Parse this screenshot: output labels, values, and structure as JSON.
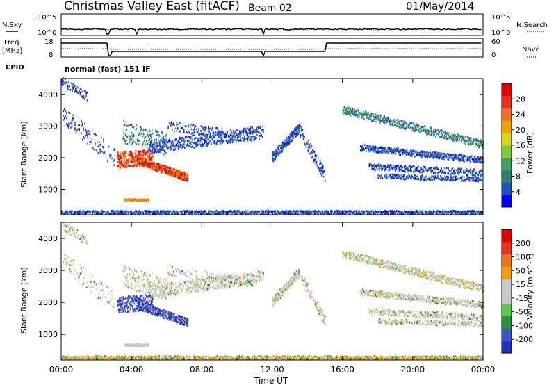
{
  "header": {
    "title": "Christmas Valley East (fitACF)",
    "beam": "Beam 02",
    "date": "01/May/2014"
  },
  "summary_panels": {
    "nsky": {
      "left_label": "N.Sky",
      "right_label": "N.Search",
      "left_ticks": [
        "10^5",
        "10^0"
      ],
      "right_ticks": [
        "10^5",
        "10^0"
      ]
    },
    "freq": {
      "left_label": "Freq.",
      "left_unit": "[MHz]",
      "right_label": "Nave",
      "left_ticks": [
        "18",
        "8"
      ],
      "right_ticks": [
        "60",
        "0"
      ]
    },
    "cpid": {
      "label": "CPID",
      "text": "normal (fast) 151 IF"
    }
  },
  "x_axis": {
    "label": "Time UT",
    "ticks": [
      "00:00",
      "04:00",
      "08:00",
      "12:00",
      "16:00",
      "20:00",
      "00:00"
    ]
  },
  "colors": {
    "power_scale": [
      "#0000ff",
      "#2050c8",
      "#2e7d6e",
      "#3aa05a",
      "#7ccc3a",
      "#d8d810",
      "#f0a000",
      "#f07020",
      "#e83020",
      "#e80000"
    ],
    "velocity_scale": [
      "#2030c0",
      "#3a56c8",
      "#2e8f3a",
      "#5ac84a",
      "#c8c8c8",
      "#c8c8c8",
      "#f0a000",
      "#f07020",
      "#e83020",
      "#e80000"
    ]
  },
  "chart_data": [
    {
      "type": "heatmap",
      "title": "Power",
      "ylabel": "Slant Range [km]",
      "xlabel": "",
      "xlim": [
        0,
        24
      ],
      "ylim": [
        200,
        4500
      ],
      "yticks": [
        "1000",
        "2000",
        "3000",
        "4000"
      ],
      "colorbar_label": "Power [dB]",
      "colorbar_ticks": [
        "28",
        "24",
        "20",
        "16",
        "12",
        "8",
        "4"
      ],
      "colorbar_range": [
        0,
        32
      ]
    },
    {
      "type": "heatmap",
      "title": "Velocity",
      "ylabel": "Slant Range [km]",
      "xlabel": "Time UT",
      "xlim": [
        0,
        24
      ],
      "ylim": [
        200,
        4500
      ],
      "yticks": [
        "1000",
        "2000",
        "3000",
        "4000"
      ],
      "colorbar_label": "Velocity [m s^-1]",
      "colorbar_ticks": [
        "200",
        "100",
        "50",
        "15",
        "-15",
        "-50",
        "-100",
        "-200"
      ],
      "colorbar_range": [
        -250,
        250
      ]
    }
  ]
}
